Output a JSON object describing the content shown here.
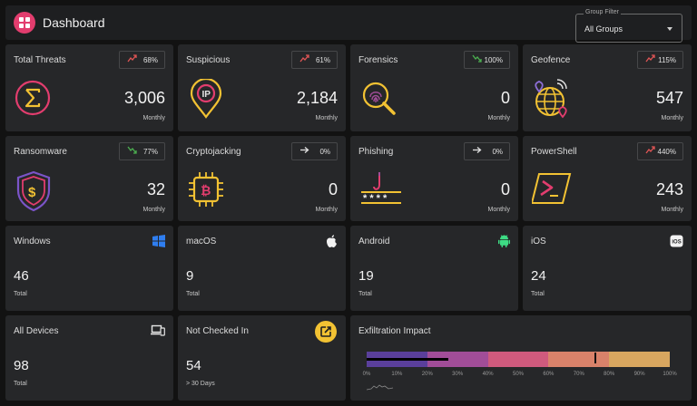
{
  "header": {
    "title": "Dashboard",
    "logo_icon": "grid-icon",
    "accent": "#e23d6e"
  },
  "filter": {
    "legend": "Group Filter",
    "value": "All Groups"
  },
  "threat_cards": [
    {
      "id": "total-threats",
      "title": "Total Threats",
      "trend": "68%",
      "trend_dir": "up",
      "value": "3,006",
      "sub": "Monthly",
      "icon": "sigma-icon"
    },
    {
      "id": "suspicious",
      "title": "Suspicious",
      "trend": "61%",
      "trend_dir": "up",
      "value": "2,184",
      "sub": "Monthly",
      "icon": "ip-location-icon"
    },
    {
      "id": "forensics",
      "title": "Forensics",
      "trend": "100%",
      "trend_dir": "down",
      "value": "0",
      "sub": "Monthly",
      "icon": "fingerprint-search-icon"
    },
    {
      "id": "geofence",
      "title": "Geofence",
      "trend": "115%",
      "trend_dir": "up",
      "value": "547",
      "sub": "Monthly",
      "icon": "globe-pin-icon"
    },
    {
      "id": "ransomware",
      "title": "Ransomware",
      "trend": "77%",
      "trend_dir": "down",
      "value": "32",
      "sub": "Monthly",
      "icon": "dollar-shield-icon"
    },
    {
      "id": "cryptojacking",
      "title": "Cryptojacking",
      "trend": "0%",
      "trend_dir": "flat",
      "value": "0",
      "sub": "Monthly",
      "icon": "bitcoin-chip-icon"
    },
    {
      "id": "phishing",
      "title": "Phishing",
      "trend": "0%",
      "trend_dir": "flat",
      "value": "0",
      "sub": "Monthly",
      "icon": "password-hook-icon"
    },
    {
      "id": "powershell",
      "title": "PowerShell",
      "trend": "440%",
      "trend_dir": "up",
      "value": "243",
      "sub": "Monthly",
      "icon": "terminal-icon"
    }
  ],
  "os_cards": [
    {
      "id": "windows",
      "title": "Windows",
      "value": "46",
      "sub": "Total",
      "icon": "windows-icon"
    },
    {
      "id": "macos",
      "title": "macOS",
      "value": "9",
      "sub": "Total",
      "icon": "apple-icon"
    },
    {
      "id": "android",
      "title": "Android",
      "value": "19",
      "sub": "Total",
      "icon": "android-icon"
    },
    {
      "id": "ios",
      "title": "iOS",
      "value": "24",
      "sub": "Total",
      "icon": "ios-icon"
    }
  ],
  "device_cards": [
    {
      "id": "all-devices",
      "title": "All Devices",
      "value": "98",
      "sub": "Total",
      "icon": "devices-icon"
    },
    {
      "id": "not-checked-in",
      "title": "Not Checked In",
      "value": "54",
      "sub": "> 30 Days",
      "icon": "open-external-icon"
    }
  ],
  "exfiltration": {
    "title": "Exfiltration Impact",
    "value_percent": 27,
    "marker_percent": 75,
    "segments": [
      "#5a3f9b",
      "#a14d98",
      "#cf5a7d",
      "#d9826a",
      "#d8a65f"
    ],
    "ticks": [
      "0%",
      "10%",
      "20%",
      "30%",
      "40%",
      "50%",
      "60%",
      "70%",
      "80%",
      "90%",
      "100%"
    ]
  }
}
